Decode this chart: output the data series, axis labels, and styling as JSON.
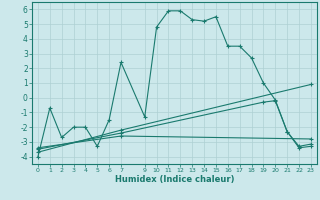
{
  "line1_x": [
    0,
    1,
    2,
    3,
    4,
    5,
    6,
    7,
    9,
    10,
    11,
    12,
    13,
    14,
    15,
    16,
    17,
    18,
    19,
    20,
    21,
    22,
    23
  ],
  "line1_y": [
    -4.0,
    -0.7,
    -2.7,
    -2.0,
    -2.0,
    -3.3,
    -1.5,
    2.4,
    -1.3,
    4.8,
    5.9,
    5.9,
    5.3,
    5.2,
    5.5,
    3.5,
    3.5,
    2.7,
    1.0,
    -0.15,
    -2.3,
    -3.4,
    -3.3
  ],
  "line2_x": [
    0,
    7,
    23
  ],
  "line2_y": [
    -3.7,
    -2.2,
    0.9
  ],
  "line3_x": [
    0,
    7,
    19,
    20,
    21,
    22,
    23
  ],
  "line3_y": [
    -3.5,
    -2.4,
    -0.3,
    -0.2,
    -2.3,
    -3.3,
    -3.15
  ],
  "line4_x": [
    0,
    7,
    23
  ],
  "line4_y": [
    -3.4,
    -2.6,
    -2.8
  ],
  "color": "#1a7a6e",
  "bg_color": "#cce8eb",
  "grid_color": "#aed0d4",
  "xlabel": "Humidex (Indice chaleur)",
  "xlim": [
    -0.5,
    23.5
  ],
  "ylim": [
    -4.5,
    6.5
  ],
  "xticks": [
    0,
    1,
    2,
    3,
    4,
    5,
    6,
    7,
    9,
    10,
    11,
    12,
    13,
    14,
    15,
    16,
    17,
    18,
    19,
    20,
    21,
    22,
    23
  ],
  "xtick_labels": [
    "0",
    "1",
    "2",
    "3",
    "4",
    "5",
    "6",
    "7",
    "9",
    "10",
    "11",
    "12",
    "13",
    "14",
    "15",
    "16",
    "17",
    "18",
    "19",
    "20",
    "21",
    "22",
    "23"
  ],
  "yticks": [
    -4,
    -3,
    -2,
    -1,
    0,
    1,
    2,
    3,
    4,
    5,
    6
  ]
}
